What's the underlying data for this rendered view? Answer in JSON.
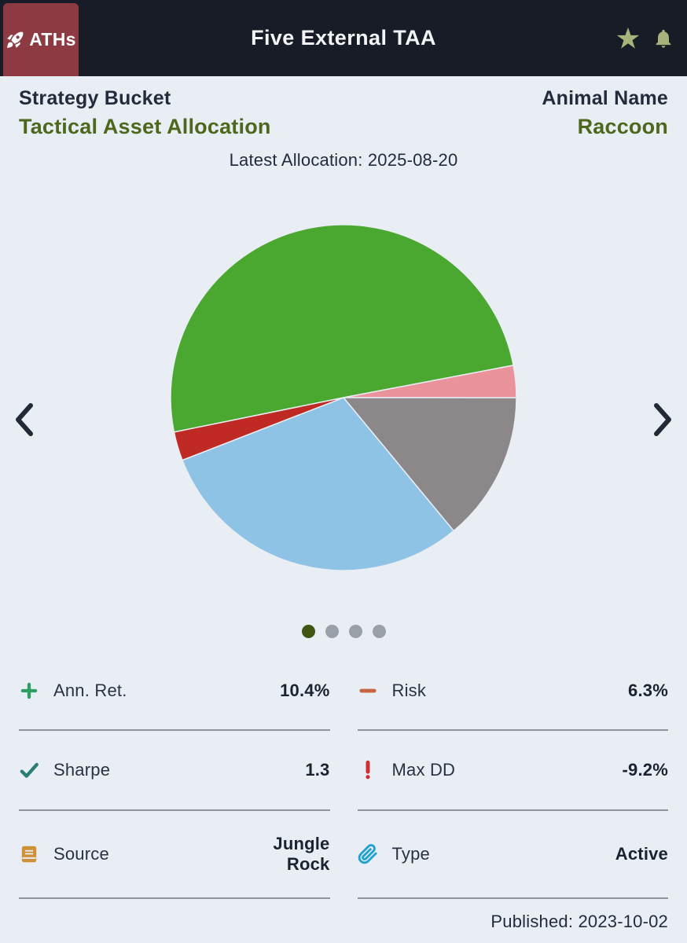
{
  "header": {
    "logo_text": "ATHs",
    "title": "Five External TAA",
    "logo_bg": "#8e3a42",
    "bar_bg": "#171c26",
    "icon_color": "#a8b37c"
  },
  "info": {
    "bucket_label": "Strategy Bucket",
    "bucket_value": "Tactical Asset Allocation",
    "animal_label": "Animal Name",
    "animal_value": "Raccoon",
    "latest_allocation": "Latest Allocation: 2025-08-20",
    "accent_green": "#4c681c"
  },
  "carousel": {
    "dots": 4,
    "active_dot": 0,
    "active_dot_color": "#3e5513",
    "inactive_dot_color": "#9aa0a7"
  },
  "chart_data": {
    "type": "pie",
    "title": "",
    "legend": false,
    "data_labels_visible": false,
    "start_angle_deg_clockwise_from_top": 258.5,
    "slices": [
      {
        "label": "green",
        "percent": 50.2,
        "color": "#4aa72f"
      },
      {
        "label": "salmon",
        "percent": 3.0,
        "color": "#ea939c"
      },
      {
        "label": "gray",
        "percent": 14.0,
        "color": "#8c888a"
      },
      {
        "label": "light-blue",
        "percent": 30.1,
        "color": "#8fc3e6"
      },
      {
        "label": "dark-red",
        "percent": 2.7,
        "color": "#bf2b24"
      }
    ]
  },
  "stats": [
    {
      "icon": "plus-icon",
      "label": "Ann. Ret.",
      "value": "10.4%",
      "icon_color": "#2e9e63"
    },
    {
      "icon": "minus-icon",
      "label": "Risk",
      "value": "6.3%",
      "icon_color": "#c96540"
    },
    {
      "icon": "check-icon",
      "label": "Sharpe",
      "value": "1.3",
      "icon_color": "#2b7e74"
    },
    {
      "icon": "exclamation-icon",
      "label": "Max DD",
      "value": "-9.2%",
      "icon_color": "#cc2f36"
    },
    {
      "icon": "book-icon",
      "label": "Source",
      "value": "Jungle Rock",
      "icon_color": "#cf9136"
    },
    {
      "icon": "paperclip-icon",
      "label": "Type",
      "value": "Active",
      "icon_color": "#1fa3cc"
    }
  ],
  "footer": {
    "published": "Published: 2023-10-02"
  }
}
